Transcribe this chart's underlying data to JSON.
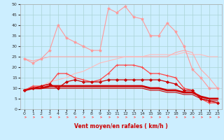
{
  "xlabel": "Vent moyen/en rafales ( km/h )",
  "background_color": "#cceeff",
  "grid_color": "#aad4d4",
  "xlim": [
    -0.5,
    23.5
  ],
  "ylim": [
    0,
    50
  ],
  "xticks": [
    0,
    1,
    2,
    3,
    4,
    5,
    6,
    7,
    8,
    9,
    10,
    11,
    12,
    13,
    14,
    15,
    16,
    17,
    18,
    19,
    20,
    21,
    22,
    23
  ],
  "yticks": [
    0,
    5,
    10,
    15,
    20,
    25,
    30,
    35,
    40,
    45,
    50
  ],
  "x": [
    0,
    1,
    2,
    3,
    4,
    5,
    6,
    7,
    8,
    9,
    10,
    11,
    12,
    13,
    14,
    15,
    16,
    17,
    18,
    19,
    20,
    21,
    22,
    23
  ],
  "series": [
    {
      "name": "max_rafales_peak",
      "y": [
        24,
        22,
        24,
        28,
        40,
        34,
        32,
        30,
        28,
        28,
        48,
        46,
        49,
        44,
        43,
        35,
        35,
        41,
        37,
        30,
        19,
        15,
        10,
        10
      ],
      "color": "#ff9999",
      "linewidth": 0.8,
      "marker": "*",
      "markersize": 3,
      "zorder": 3
    },
    {
      "name": "avg_rafales_flat",
      "y": [
        24,
        23,
        24,
        25,
        25,
        25,
        25,
        25,
        25,
        25,
        25,
        25,
        25,
        25,
        25,
        25,
        25,
        25,
        27,
        28,
        27,
        19,
        15,
        10
      ],
      "color": "#ffaaaa",
      "linewidth": 0.8,
      "marker": null,
      "markersize": 0,
      "zorder": 2
    },
    {
      "name": "diag_rise",
      "y": [
        9,
        10,
        11,
        13,
        14,
        15,
        17,
        18,
        20,
        22,
        23,
        24,
        25,
        25,
        25,
        26,
        26,
        26,
        26,
        27,
        26,
        26,
        25,
        25
      ],
      "color": "#ffbbbb",
      "linewidth": 0.8,
      "marker": null,
      "markersize": 0,
      "zorder": 2
    },
    {
      "name": "wind_max_marker",
      "y": [
        9,
        11,
        11,
        12,
        17,
        17,
        15,
        14,
        13,
        14,
        17,
        21,
        21,
        21,
        20,
        17,
        17,
        16,
        15,
        10,
        9,
        5,
        3,
        3
      ],
      "color": "#ff4444",
      "linewidth": 0.9,
      "marker": "+",
      "markersize": 3,
      "zorder": 4
    },
    {
      "name": "wind_avg_marker",
      "y": [
        9,
        10,
        11,
        12,
        10,
        13,
        14,
        13,
        13,
        13,
        14,
        14,
        14,
        14,
        14,
        14,
        14,
        13,
        12,
        9,
        9,
        5,
        4,
        3
      ],
      "color": "#cc0000",
      "linewidth": 0.9,
      "marker": "D",
      "markersize": 2,
      "zorder": 5
    },
    {
      "name": "base_thick",
      "y": [
        9,
        10,
        10,
        11,
        11,
        11,
        11,
        11,
        11,
        11,
        11,
        11,
        11,
        11,
        11,
        10,
        10,
        9,
        9,
        8,
        8,
        6,
        5,
        5
      ],
      "color": "#cc0000",
      "linewidth": 2.0,
      "marker": null,
      "markersize": 0,
      "zorder": 3
    },
    {
      "name": "base_thin",
      "y": [
        9,
        10,
        10,
        10,
        10,
        10,
        10,
        10,
        10,
        10,
        10,
        10,
        10,
        10,
        10,
        9,
        9,
        8,
        8,
        7,
        7,
        5,
        4,
        4
      ],
      "color": "#cc0000",
      "linewidth": 0.8,
      "marker": null,
      "markersize": 0,
      "zorder": 3
    }
  ]
}
